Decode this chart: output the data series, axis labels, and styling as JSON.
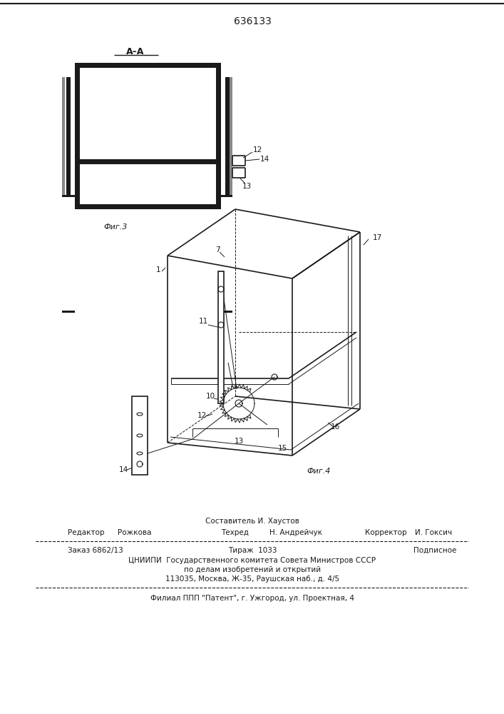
{
  "title": "636133",
  "background_color": "#ffffff",
  "fig3_label": "Фиг.3",
  "fig4_label": "Фиг.4",
  "section_label": "А–А",
  "composer_line": "Составитель И. Хаустов",
  "editor_label": "Редактор",
  "editor_name": "Рожкова",
  "techred_label": "Техред",
  "techred_name": "Н. Андрейчук",
  "corrector_label": "Корректор",
  "corrector_name": "И. Гоксич",
  "order_label": "Заказ 6862/13",
  "tirazh_label": "Тираж  1033",
  "podpisnoe_label": "Подписное",
  "org_line1": "ЦНИИПИ  Государственного комитета Совета Министров СССР",
  "org_line2": "по делам изобретений и открытий",
  "org_line3": "113035, Москва, Ж-35, Раушская наб., д. 4/5",
  "patent_line": "Филиал ППП \"Патент\", г. Ужгород, ул. Проектная, 4"
}
